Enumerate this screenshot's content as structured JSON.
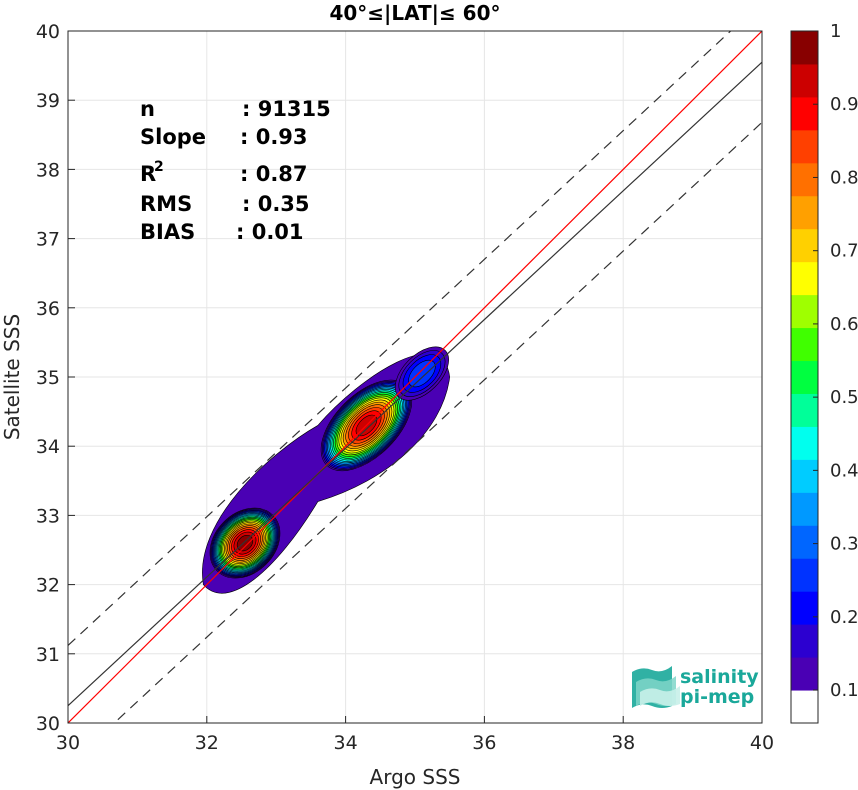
{
  "chart_data": {
    "type": "contour",
    "title": "40°≤|LAT|≤ 60°",
    "xlabel": "Argo SSS",
    "ylabel": "Satellite SSS",
    "xlim": [
      30,
      40
    ],
    "ylim": [
      30,
      40
    ],
    "xticks": [
      "30",
      "32",
      "34",
      "36",
      "38",
      "40"
    ],
    "yticks": [
      "30",
      "31",
      "32",
      "33",
      "34",
      "35",
      "36",
      "37",
      "38",
      "39",
      "40"
    ],
    "grid": true,
    "stats": [
      {
        "key": "n",
        "sup": "",
        "value": ": 91315"
      },
      {
        "key": "Slope",
        "sup": "",
        "value": ": 0.93"
      },
      {
        "key": "R",
        "sup": "2",
        "value": ": 0.87"
      },
      {
        "key": "RMS",
        "sup": "",
        "value": ": 0.35"
      },
      {
        "key": "BIAS",
        "sup": "",
        "value": ": 0.01"
      }
    ],
    "lines": [
      {
        "label": "one-to-one",
        "color": "#ff0000",
        "style": "solid",
        "slope": 1.0,
        "intercept": 0.0
      },
      {
        "label": "regression",
        "color": "#333333",
        "style": "solid",
        "slope": 0.93,
        "intercept": 2.35
      },
      {
        "label": "upper bound",
        "color": "#333333",
        "style": "dashed",
        "slope": 0.93,
        "intercept": 3.22
      },
      {
        "label": "lower bound",
        "color": "#333333",
        "style": "dashed",
        "slope": 0.93,
        "intercept": 1.48
      }
    ],
    "density_peaks": [
      {
        "x": 32.55,
        "y": 32.6,
        "sx": 0.42,
        "sy": 0.32,
        "rotation_deg": 45,
        "peak": 1.0
      },
      {
        "x": 34.3,
        "y": 34.3,
        "sx": 0.6,
        "sy": 0.33,
        "rotation_deg": 45,
        "peak": 0.97
      },
      {
        "x": 35.1,
        "y": 35.05,
        "sx": 0.35,
        "sy": 0.2,
        "rotation_deg": 45,
        "peak": 0.18
      }
    ],
    "colorbar": {
      "ticks": [
        "0.1",
        "0.2",
        "0.3",
        "0.4",
        "0.5",
        "0.6",
        "0.7",
        "0.8",
        "0.9",
        "1"
      ],
      "range": [
        0,
        1
      ],
      "colors": [
        "#ffffff",
        "#4a00b4",
        "#2c00d0",
        "#0000ff",
        "#0033ff",
        "#0066ff",
        "#0099ff",
        "#00ccff",
        "#00ffee",
        "#00ff99",
        "#00ff40",
        "#40ff00",
        "#9fff00",
        "#ffff00",
        "#ffd000",
        "#ffa000",
        "#ff7000",
        "#ff4000",
        "#ff0000",
        "#cc0000",
        "#880000"
      ]
    },
    "logo": {
      "line1": "salinity",
      "line2": "pi-mep"
    }
  }
}
